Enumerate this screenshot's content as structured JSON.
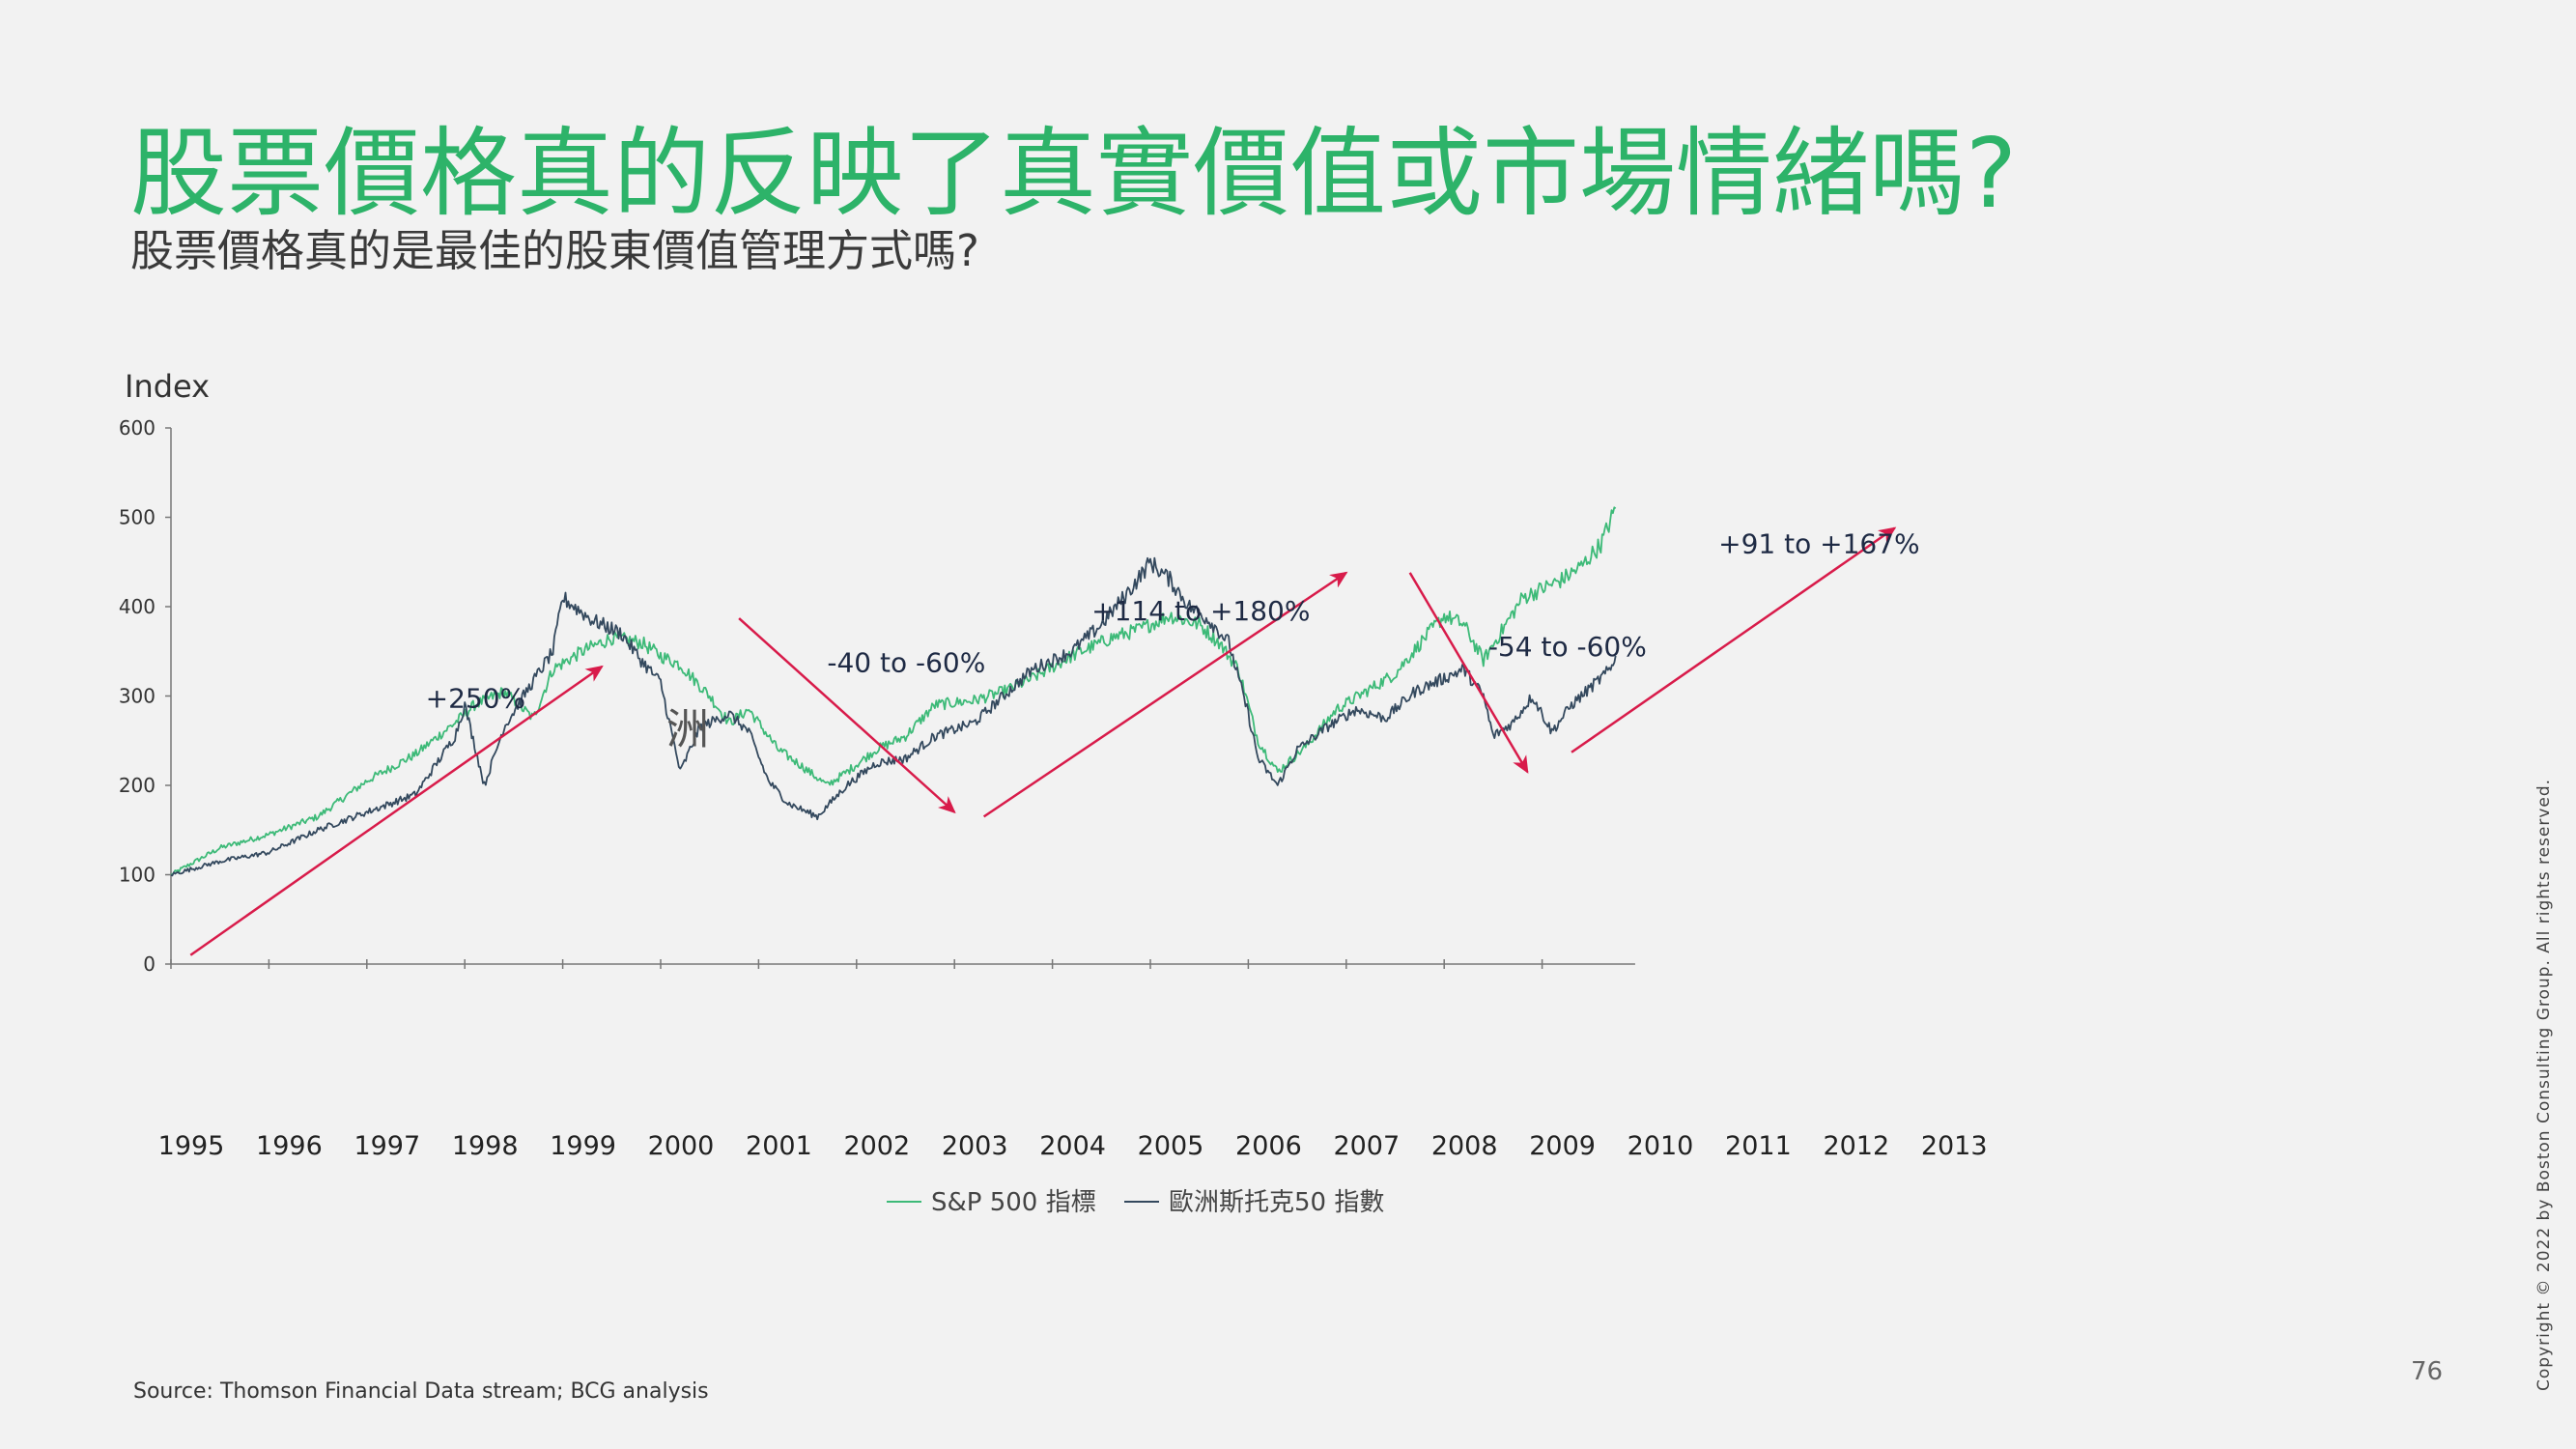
{
  "slide": {
    "title": "股票價格真的反映了真實價值或市場情緒嗎?",
    "subtitle": "股票價格真的是最佳的股東價值管理方式嗎?",
    "source": "Source: Thomson Financial Data stream; BCG analysis",
    "page_number": "76",
    "copyright": "Copyright © 2022 by Boston Consulting Group. All rights reserved.",
    "colors": {
      "title": "#2db369",
      "arrow": "#d81b4a",
      "sp500": "#3dba78",
      "eurostoxx": "#34495e"
    }
  },
  "chart_data": {
    "type": "line",
    "ylabel": "Index",
    "ylim": [
      0,
      600
    ],
    "yticks": [
      "0",
      "100",
      "200",
      "300",
      "400",
      "500",
      "600"
    ],
    "x_labels": [
      "1995",
      "1996",
      "1997",
      "1998",
      "1999",
      "2000",
      "2001",
      "2002",
      "2003",
      "2004",
      "2005",
      "2006",
      "2007",
      "2008",
      "2009",
      "2010",
      "2011",
      "2012",
      "2013"
    ],
    "ghost_text": "洲",
    "series": [
      {
        "name": "S&P 500  指標",
        "color": "#3dba78",
        "points": [
          [
            1995.0,
            100
          ],
          [
            1995.5,
            130
          ],
          [
            1996.0,
            145
          ],
          [
            1996.5,
            165
          ],
          [
            1997.0,
            205
          ],
          [
            1997.5,
            235
          ],
          [
            1997.9,
            270
          ],
          [
            1998.1,
            290
          ],
          [
            1998.4,
            305
          ],
          [
            1998.7,
            275
          ],
          [
            1998.9,
            330
          ],
          [
            1999.2,
            350
          ],
          [
            1999.5,
            365
          ],
          [
            1999.8,
            360
          ],
          [
            2000.0,
            345
          ],
          [
            2000.2,
            335
          ],
          [
            2000.5,
            300
          ],
          [
            2000.7,
            270
          ],
          [
            2000.9,
            285
          ],
          [
            2001.0,
            270
          ],
          [
            2001.2,
            240
          ],
          [
            2001.4,
            225
          ],
          [
            2001.7,
            200
          ],
          [
            2001.9,
            215
          ],
          [
            2002.2,
            240
          ],
          [
            2002.5,
            255
          ],
          [
            2002.8,
            290
          ],
          [
            2003.2,
            295
          ],
          [
            2003.5,
            305
          ],
          [
            2003.8,
            320
          ],
          [
            2004.2,
            345
          ],
          [
            2004.6,
            365
          ],
          [
            2004.9,
            375
          ],
          [
            2005.2,
            390
          ],
          [
            2005.5,
            380
          ],
          [
            2005.7,
            360
          ],
          [
            2005.9,
            330
          ],
          [
            2006.1,
            250
          ],
          [
            2006.3,
            215
          ],
          [
            2006.6,
            245
          ],
          [
            2006.9,
            285
          ],
          [
            2007.2,
            305
          ],
          [
            2007.5,
            325
          ],
          [
            2007.8,
            365
          ],
          [
            2008.0,
            390
          ],
          [
            2008.2,
            380
          ],
          [
            2008.4,
            340
          ],
          [
            2008.6,
            375
          ],
          [
            2008.8,
            410
          ],
          [
            2009.0,
            420
          ],
          [
            2009.2,
            430
          ],
          [
            2009.4,
            445
          ],
          [
            2009.6,
            470
          ],
          [
            2009.75,
            510
          ]
        ]
      },
      {
        "name": "歐洲斯托克50 指數",
        "color": "#34495e",
        "points": [
          [
            1995.0,
            100
          ],
          [
            1995.5,
            115
          ],
          [
            1996.0,
            125
          ],
          [
            1996.5,
            150
          ],
          [
            1997.0,
            170
          ],
          [
            1997.5,
            190
          ],
          [
            1997.9,
            255
          ],
          [
            1998.0,
            290
          ],
          [
            1998.2,
            200
          ],
          [
            1998.4,
            265
          ],
          [
            1998.6,
            300
          ],
          [
            1998.9,
            350
          ],
          [
            1999.0,
            410
          ],
          [
            1999.3,
            385
          ],
          [
            1999.6,
            370
          ],
          [
            1999.8,
            340
          ],
          [
            2000.0,
            315
          ],
          [
            2000.2,
            215
          ],
          [
            2000.4,
            265
          ],
          [
            2000.7,
            280
          ],
          [
            2000.9,
            260
          ],
          [
            2001.1,
            205
          ],
          [
            2001.3,
            180
          ],
          [
            2001.6,
            165
          ],
          [
            2001.9,
            200
          ],
          [
            2002.2,
            225
          ],
          [
            2002.5,
            230
          ],
          [
            2002.8,
            255
          ],
          [
            2003.2,
            270
          ],
          [
            2003.5,
            300
          ],
          [
            2003.8,
            330
          ],
          [
            2004.2,
            350
          ],
          [
            2004.5,
            380
          ],
          [
            2004.8,
            420
          ],
          [
            2005.0,
            450
          ],
          [
            2005.2,
            430
          ],
          [
            2005.4,
            400
          ],
          [
            2005.6,
            385
          ],
          [
            2005.8,
            360
          ],
          [
            2006.0,
            280
          ],
          [
            2006.1,
            230
          ],
          [
            2006.3,
            200
          ],
          [
            2006.5,
            240
          ],
          [
            2006.8,
            265
          ],
          [
            2007.1,
            285
          ],
          [
            2007.4,
            275
          ],
          [
            2007.7,
            305
          ],
          [
            2008.0,
            320
          ],
          [
            2008.2,
            330
          ],
          [
            2008.4,
            300
          ],
          [
            2008.5,
            255
          ],
          [
            2008.7,
            270
          ],
          [
            2008.9,
            300
          ],
          [
            2009.1,
            260
          ],
          [
            2009.3,
            290
          ],
          [
            2009.5,
            310
          ],
          [
            2009.7,
            330
          ],
          [
            2009.75,
            345
          ]
        ]
      }
    ],
    "annotations": [
      {
        "text": "+250%",
        "x": 1997.6,
        "y": 287
      },
      {
        "text": "-40 to -60%",
        "x": 2001.7,
        "y": 327
      },
      {
        "text": "+114 to +180%",
        "x": 2004.4,
        "y": 385
      },
      {
        "text": "-54 to -60%",
        "x": 2008.45,
        "y": 345
      },
      {
        "text": "+91 to +167%",
        "x": 2010.8,
        "y": 460
      }
    ],
    "arrows": [
      {
        "from": [
          1995.2,
          10
        ],
        "to": [
          1999.4,
          333
        ]
      },
      {
        "from": [
          2000.8,
          387
        ],
        "to": [
          2003.0,
          170
        ]
      },
      {
        "from": [
          2003.3,
          165
        ],
        "to": [
          2007.0,
          438
        ]
      },
      {
        "from": [
          2007.65,
          438
        ],
        "to": [
          2008.85,
          215
        ]
      },
      {
        "from": [
          2009.3,
          237
        ],
        "to": [
          2012.6,
          488
        ]
      }
    ]
  }
}
